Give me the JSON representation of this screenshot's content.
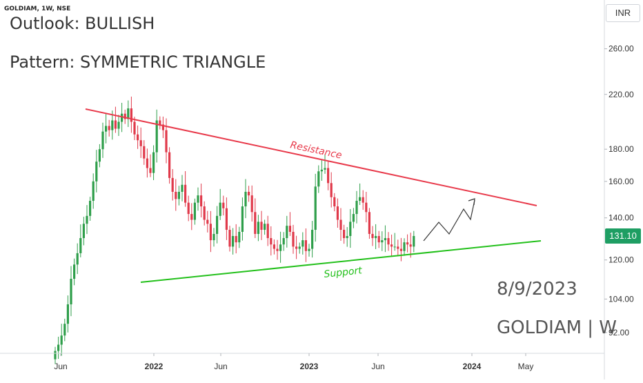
{
  "header": {
    "symbol_label": "GOLDIAM, 1W, NSE",
    "outlook": "Outlook: BULLISH",
    "pattern": "Pattern: SYMMETRIC TRIANGLE",
    "currency": "INR"
  },
  "footer": {
    "date": "8/9/2023",
    "ticker": "GOLDIAM | W"
  },
  "colors": {
    "up": "#22ab94",
    "up_body": "#2ea043",
    "down": "#e0394a",
    "resistance": "#e8394a",
    "support": "#22c01a",
    "arrow": "#333333",
    "last_price_bg": "#1e9e63"
  },
  "chart_data": {
    "type": "candlestick",
    "y_scale": "log",
    "ylim": [
      87,
      300
    ],
    "y_ticks": [
      "260.00",
      "220.00",
      "180.00",
      "160.00",
      "140.00",
      "120.00",
      "104.00",
      "92.00"
    ],
    "x_ticks": [
      {
        "label": "Jun",
        "bold": false
      },
      {
        "label": "2022",
        "bold": true
      },
      {
        "label": "Jun",
        "bold": false
      },
      {
        "label": "2023",
        "bold": true
      },
      {
        "label": "Jun",
        "bold": false
      },
      {
        "label": "2024",
        "bold": true
      },
      {
        "label": "May",
        "bold": false
      }
    ],
    "last_price": "131.10",
    "annotations": {
      "resistance_label": "Resistance",
      "support_label": "Support"
    },
    "resistance_line": {
      "from": [
        "2021-09",
        214
      ],
      "to": [
        "2024-05",
        152
      ]
    },
    "support_line": {
      "from": [
        "2021-11",
        114
      ],
      "to": [
        "2024-05",
        132
      ]
    },
    "projection_arrow": "zigzag up from last candle toward resistance",
    "closes": [
      86,
      88,
      91,
      95,
      102,
      112,
      118,
      123,
      130,
      137,
      141,
      149,
      160,
      172,
      180,
      192,
      196,
      193,
      200,
      194,
      199,
      205,
      201,
      209,
      199,
      190,
      186,
      182,
      174,
      168,
      165,
      178,
      200,
      197,
      193,
      178,
      162,
      154,
      150,
      154,
      158,
      148,
      142,
      139,
      148,
      152,
      146,
      139,
      137,
      129,
      132,
      141,
      148,
      145,
      134,
      126,
      131,
      128,
      133,
      146,
      154,
      152,
      143,
      132,
      138,
      134,
      137,
      130,
      127,
      125,
      124,
      127,
      130,
      136,
      133,
      126,
      125,
      126,
      129,
      124,
      125,
      134,
      157,
      166,
      167,
      168,
      159,
      151,
      146,
      139,
      134,
      130,
      131,
      138,
      142,
      149,
      151,
      148,
      143,
      132,
      130,
      131,
      128,
      129,
      130,
      127,
      126,
      126,
      125,
      124,
      128,
      127,
      126,
      131
    ]
  }
}
